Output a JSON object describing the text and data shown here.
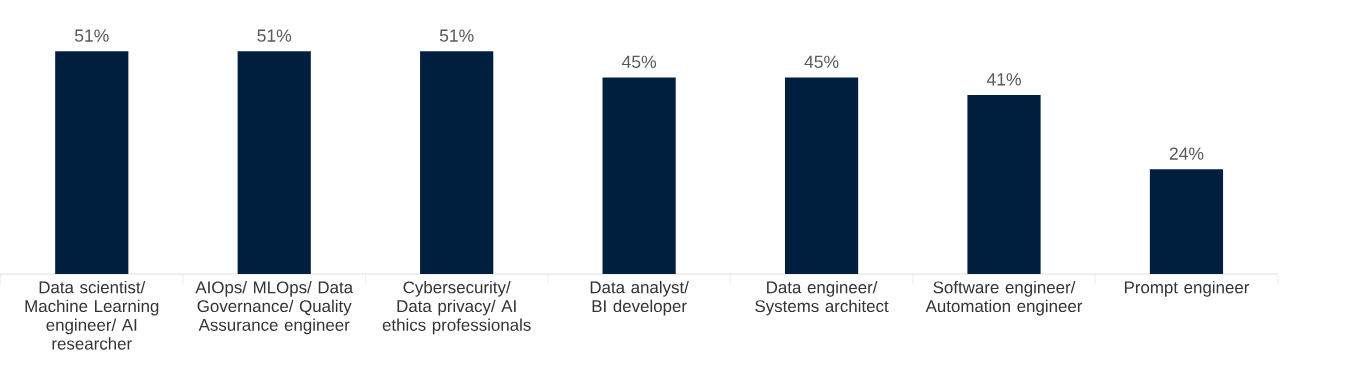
{
  "chart_data": {
    "type": "bar",
    "categories": [
      "Data scientist/ Machine Learning engineer/ AI researcher",
      "AIOps/ MLOps/ Data Governance/ Quality Assurance engineer",
      "Cybersecurity/ Data privacy/ AI ethics professionals",
      "Data analyst/ BI developer",
      "Data engineer/ Systems architect",
      "Software engineer/ Automation engineer",
      "Prompt engineer"
    ],
    "values": [
      51,
      51,
      51,
      45,
      45,
      41,
      24
    ],
    "value_labels": [
      "51%",
      "51%",
      "51%",
      "45%",
      "45%",
      "41%",
      "24%"
    ],
    "color": "#001f3f"
  }
}
